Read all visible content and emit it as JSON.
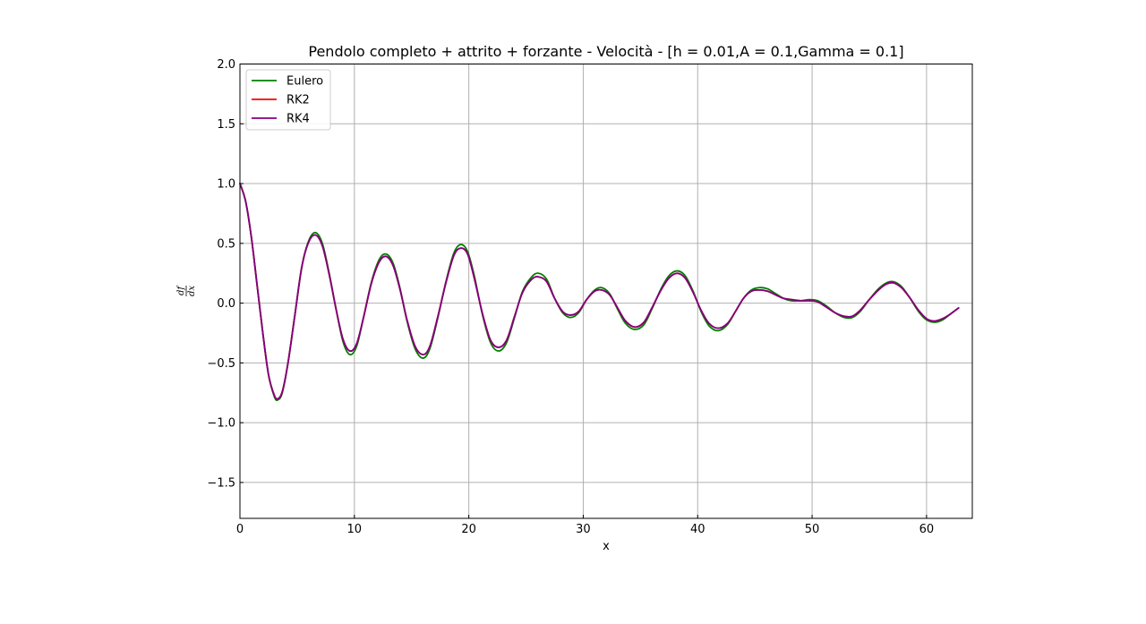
{
  "chart_data": {
    "type": "line",
    "title": "Pendolo completo + attrito + forzante - Velocità - [h = 0.01,A = 0.1,Gamma = 0.1]",
    "xlabel": "x",
    "ylabel": "df/dx",
    "ylabel_num": "df",
    "ylabel_den": "dx",
    "xlim": [
      0,
      64
    ],
    "ylim": [
      -1.8,
      2.0
    ],
    "xticks": [
      0,
      10,
      20,
      30,
      40,
      50,
      60
    ],
    "xtick_labels": [
      "0",
      "10",
      "20",
      "30",
      "40",
      "50",
      "60"
    ],
    "yticks": [
      -1.5,
      -1.0,
      -0.5,
      0.0,
      0.5,
      1.0,
      1.5,
      2.0
    ],
    "ytick_labels": [
      "−1.5",
      "−1.0",
      "−0.5",
      "0.0",
      "0.5",
      "1.0",
      "1.5",
      "2.0"
    ],
    "grid": true,
    "legend_position": "top-left",
    "series": [
      {
        "name": "Eulero",
        "color": "#008000",
        "points": [
          [
            0,
            1.0
          ],
          [
            0.5,
            0.85
          ],
          [
            1,
            0.55
          ],
          [
            1.5,
            0.15
          ],
          [
            2,
            -0.25
          ],
          [
            2.5,
            -0.6
          ],
          [
            3,
            -0.78
          ],
          [
            3.3,
            -0.81
          ],
          [
            3.7,
            -0.75
          ],
          [
            4.2,
            -0.5
          ],
          [
            4.8,
            -0.1
          ],
          [
            5.4,
            0.3
          ],
          [
            6,
            0.52
          ],
          [
            6.6,
            0.59
          ],
          [
            7.2,
            0.5
          ],
          [
            7.8,
            0.25
          ],
          [
            8.4,
            -0.05
          ],
          [
            9,
            -0.32
          ],
          [
            9.6,
            -0.43
          ],
          [
            10.2,
            -0.36
          ],
          [
            10.8,
            -0.12
          ],
          [
            11.5,
            0.18
          ],
          [
            12.2,
            0.37
          ],
          [
            12.8,
            0.41
          ],
          [
            13.4,
            0.33
          ],
          [
            14,
            0.12
          ],
          [
            14.6,
            -0.15
          ],
          [
            15.3,
            -0.38
          ],
          [
            16,
            -0.46
          ],
          [
            16.6,
            -0.38
          ],
          [
            17.3,
            -0.12
          ],
          [
            18,
            0.18
          ],
          [
            18.7,
            0.42
          ],
          [
            19.3,
            0.49
          ],
          [
            19.9,
            0.43
          ],
          [
            20.5,
            0.22
          ],
          [
            21.2,
            -0.1
          ],
          [
            21.9,
            -0.33
          ],
          [
            22.6,
            -0.4
          ],
          [
            23.3,
            -0.33
          ],
          [
            24,
            -0.12
          ],
          [
            24.7,
            0.1
          ],
          [
            25.5,
            0.22
          ],
          [
            26.1,
            0.25
          ],
          [
            26.8,
            0.2
          ],
          [
            27.5,
            0.04
          ],
          [
            28.2,
            -0.08
          ],
          [
            28.9,
            -0.12
          ],
          [
            29.6,
            -0.08
          ],
          [
            30.3,
            0.03
          ],
          [
            31,
            0.11
          ],
          [
            31.6,
            0.13
          ],
          [
            32.3,
            0.08
          ],
          [
            33,
            -0.05
          ],
          [
            33.7,
            -0.17
          ],
          [
            34.5,
            -0.22
          ],
          [
            35.3,
            -0.18
          ],
          [
            36,
            -0.05
          ],
          [
            36.8,
            0.12
          ],
          [
            37.5,
            0.23
          ],
          [
            38.2,
            0.27
          ],
          [
            38.9,
            0.23
          ],
          [
            39.6,
            0.1
          ],
          [
            40.3,
            -0.07
          ],
          [
            41,
            -0.19
          ],
          [
            41.8,
            -0.23
          ],
          [
            42.6,
            -0.18
          ],
          [
            43.3,
            -0.07
          ],
          [
            44,
            0.04
          ],
          [
            44.7,
            0.11
          ],
          [
            45.4,
            0.13
          ],
          [
            46.1,
            0.12
          ],
          [
            46.8,
            0.08
          ],
          [
            47.5,
            0.04
          ],
          [
            48.2,
            0.02
          ],
          [
            49,
            0.02
          ],
          [
            49.8,
            0.03
          ],
          [
            50.5,
            0.02
          ],
          [
            51.2,
            -0.02
          ],
          [
            52,
            -0.08
          ],
          [
            52.8,
            -0.12
          ],
          [
            53.5,
            -0.12
          ],
          [
            54.2,
            -0.07
          ],
          [
            55,
            0.03
          ],
          [
            55.8,
            0.12
          ],
          [
            56.5,
            0.17
          ],
          [
            57.1,
            0.18
          ],
          [
            57.8,
            0.14
          ],
          [
            58.5,
            0.05
          ],
          [
            59.3,
            -0.07
          ],
          [
            60,
            -0.14
          ],
          [
            60.7,
            -0.16
          ],
          [
            61.4,
            -0.14
          ],
          [
            62.1,
            -0.09
          ],
          [
            62.8,
            -0.04
          ]
        ]
      },
      {
        "name": "RK2",
        "color": "#ff0000",
        "points": [
          [
            0,
            1.0
          ],
          [
            0.5,
            0.85
          ],
          [
            1,
            0.55
          ],
          [
            1.5,
            0.15
          ],
          [
            2,
            -0.25
          ],
          [
            2.5,
            -0.6
          ],
          [
            3,
            -0.77
          ],
          [
            3.3,
            -0.8
          ],
          [
            3.7,
            -0.74
          ],
          [
            4.2,
            -0.5
          ],
          [
            4.8,
            -0.1
          ],
          [
            5.4,
            0.3
          ],
          [
            6,
            0.51
          ],
          [
            6.6,
            0.57
          ],
          [
            7.2,
            0.48
          ],
          [
            7.8,
            0.24
          ],
          [
            8.4,
            -0.05
          ],
          [
            9,
            -0.3
          ],
          [
            9.6,
            -0.4
          ],
          [
            10.2,
            -0.34
          ],
          [
            10.8,
            -0.12
          ],
          [
            11.5,
            0.17
          ],
          [
            12.2,
            0.35
          ],
          [
            12.8,
            0.39
          ],
          [
            13.4,
            0.31
          ],
          [
            14,
            0.11
          ],
          [
            14.6,
            -0.14
          ],
          [
            15.3,
            -0.36
          ],
          [
            16,
            -0.43
          ],
          [
            16.6,
            -0.36
          ],
          [
            17.3,
            -0.11
          ],
          [
            18,
            0.17
          ],
          [
            18.7,
            0.4
          ],
          [
            19.3,
            0.46
          ],
          [
            19.9,
            0.41
          ],
          [
            20.5,
            0.2
          ],
          [
            21.2,
            -0.09
          ],
          [
            21.9,
            -0.31
          ],
          [
            22.6,
            -0.37
          ],
          [
            23.3,
            -0.31
          ],
          [
            24,
            -0.11
          ],
          [
            24.7,
            0.09
          ],
          [
            25.5,
            0.2
          ],
          [
            26.1,
            0.22
          ],
          [
            26.8,
            0.18
          ],
          [
            27.5,
            0.04
          ],
          [
            28.2,
            -0.07
          ],
          [
            28.9,
            -0.1
          ],
          [
            29.6,
            -0.07
          ],
          [
            30.3,
            0.03
          ],
          [
            31,
            0.1
          ],
          [
            31.6,
            0.11
          ],
          [
            32.3,
            0.07
          ],
          [
            33,
            -0.04
          ],
          [
            33.7,
            -0.15
          ],
          [
            34.5,
            -0.2
          ],
          [
            35.3,
            -0.16
          ],
          [
            36,
            -0.04
          ],
          [
            36.8,
            0.11
          ],
          [
            37.5,
            0.21
          ],
          [
            38.2,
            0.25
          ],
          [
            38.9,
            0.21
          ],
          [
            39.6,
            0.09
          ],
          [
            40.3,
            -0.06
          ],
          [
            41,
            -0.17
          ],
          [
            41.8,
            -0.21
          ],
          [
            42.6,
            -0.17
          ],
          [
            43.3,
            -0.07
          ],
          [
            44,
            0.04
          ],
          [
            44.7,
            0.1
          ],
          [
            45.4,
            0.11
          ],
          [
            46.1,
            0.1
          ],
          [
            46.8,
            0.07
          ],
          [
            47.5,
            0.04
          ],
          [
            48.2,
            0.03
          ],
          [
            49,
            0.02
          ],
          [
            49.8,
            0.02
          ],
          [
            50.5,
            0.01
          ],
          [
            51.2,
            -0.03
          ],
          [
            52,
            -0.08
          ],
          [
            52.8,
            -0.11
          ],
          [
            53.5,
            -0.11
          ],
          [
            54.2,
            -0.06
          ],
          [
            55,
            0.03
          ],
          [
            55.8,
            0.11
          ],
          [
            56.5,
            0.16
          ],
          [
            57.1,
            0.17
          ],
          [
            57.8,
            0.13
          ],
          [
            58.5,
            0.05
          ],
          [
            59.3,
            -0.06
          ],
          [
            60,
            -0.13
          ],
          [
            60.7,
            -0.15
          ],
          [
            61.4,
            -0.13
          ],
          [
            62.1,
            -0.09
          ],
          [
            62.8,
            -0.04
          ]
        ]
      },
      {
        "name": "RK4",
        "color": "#800080",
        "points": [
          [
            0,
            1.0
          ],
          [
            0.5,
            0.85
          ],
          [
            1,
            0.55
          ],
          [
            1.5,
            0.15
          ],
          [
            2,
            -0.25
          ],
          [
            2.5,
            -0.6
          ],
          [
            3,
            -0.77
          ],
          [
            3.3,
            -0.8
          ],
          [
            3.7,
            -0.74
          ],
          [
            4.2,
            -0.5
          ],
          [
            4.8,
            -0.1
          ],
          [
            5.4,
            0.3
          ],
          [
            6,
            0.51
          ],
          [
            6.6,
            0.57
          ],
          [
            7.2,
            0.48
          ],
          [
            7.8,
            0.24
          ],
          [
            8.4,
            -0.05
          ],
          [
            9,
            -0.3
          ],
          [
            9.6,
            -0.4
          ],
          [
            10.2,
            -0.34
          ],
          [
            10.8,
            -0.12
          ],
          [
            11.5,
            0.17
          ],
          [
            12.2,
            0.35
          ],
          [
            12.8,
            0.39
          ],
          [
            13.4,
            0.31
          ],
          [
            14,
            0.11
          ],
          [
            14.6,
            -0.14
          ],
          [
            15.3,
            -0.36
          ],
          [
            16,
            -0.43
          ],
          [
            16.6,
            -0.36
          ],
          [
            17.3,
            -0.11
          ],
          [
            18,
            0.17
          ],
          [
            18.7,
            0.4
          ],
          [
            19.3,
            0.46
          ],
          [
            19.9,
            0.41
          ],
          [
            20.5,
            0.2
          ],
          [
            21.2,
            -0.09
          ],
          [
            21.9,
            -0.31
          ],
          [
            22.6,
            -0.37
          ],
          [
            23.3,
            -0.31
          ],
          [
            24,
            -0.11
          ],
          [
            24.7,
            0.09
          ],
          [
            25.5,
            0.2
          ],
          [
            26.1,
            0.22
          ],
          [
            26.8,
            0.18
          ],
          [
            27.5,
            0.04
          ],
          [
            28.2,
            -0.07
          ],
          [
            28.9,
            -0.1
          ],
          [
            29.6,
            -0.07
          ],
          [
            30.3,
            0.03
          ],
          [
            31,
            0.1
          ],
          [
            31.6,
            0.11
          ],
          [
            32.3,
            0.07
          ],
          [
            33,
            -0.04
          ],
          [
            33.7,
            -0.15
          ],
          [
            34.5,
            -0.2
          ],
          [
            35.3,
            -0.16
          ],
          [
            36,
            -0.04
          ],
          [
            36.8,
            0.11
          ],
          [
            37.5,
            0.21
          ],
          [
            38.2,
            0.25
          ],
          [
            38.9,
            0.21
          ],
          [
            39.6,
            0.09
          ],
          [
            40.3,
            -0.06
          ],
          [
            41,
            -0.17
          ],
          [
            41.8,
            -0.21
          ],
          [
            42.6,
            -0.17
          ],
          [
            43.3,
            -0.07
          ],
          [
            44,
            0.04
          ],
          [
            44.7,
            0.1
          ],
          [
            45.4,
            0.11
          ],
          [
            46.1,
            0.1
          ],
          [
            46.8,
            0.07
          ],
          [
            47.5,
            0.04
          ],
          [
            48.2,
            0.03
          ],
          [
            49,
            0.02
          ],
          [
            49.8,
            0.02
          ],
          [
            50.5,
            0.01
          ],
          [
            51.2,
            -0.03
          ],
          [
            52,
            -0.08
          ],
          [
            52.8,
            -0.11
          ],
          [
            53.5,
            -0.11
          ],
          [
            54.2,
            -0.06
          ],
          [
            55,
            0.03
          ],
          [
            55.8,
            0.11
          ],
          [
            56.5,
            0.16
          ],
          [
            57.1,
            0.17
          ],
          [
            57.8,
            0.13
          ],
          [
            58.5,
            0.05
          ],
          [
            59.3,
            -0.06
          ],
          [
            60,
            -0.13
          ],
          [
            60.7,
            -0.15
          ],
          [
            61.4,
            -0.13
          ],
          [
            62.1,
            -0.09
          ],
          [
            62.8,
            -0.04
          ]
        ]
      }
    ]
  }
}
